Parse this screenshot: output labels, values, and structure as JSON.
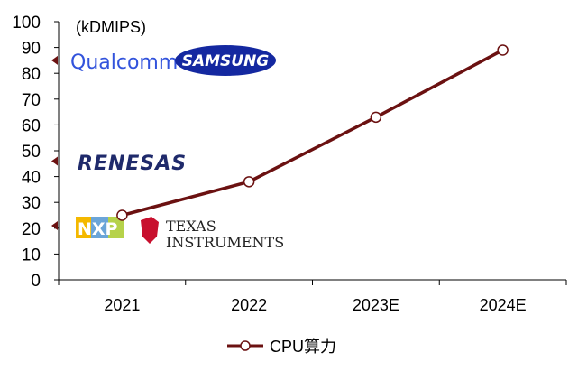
{
  "chart_data": {
    "type": "line",
    "unit_label": "(kDMIPS)",
    "categories": [
      "2021",
      "2022",
      "2023E",
      "2024E"
    ],
    "series": [
      {
        "name": "CPU算力",
        "values": [
          25,
          38,
          63,
          89
        ]
      }
    ],
    "ylim": [
      0,
      100
    ],
    "yticks": [
      0,
      10,
      20,
      30,
      40,
      50,
      60,
      70,
      80,
      90,
      100
    ],
    "grid": false,
    "legend_position": "bottom",
    "markers": [
      {
        "value": 85,
        "logos": [
          "Qualcomm",
          "SAMSUNG"
        ]
      },
      {
        "value": 46,
        "logos": [
          "RENESAS"
        ]
      },
      {
        "value": 21,
        "logos": [
          "NXP",
          "TEXAS INSTRUMENTS"
        ]
      }
    ],
    "colors": {
      "line": "#6b1111",
      "marker_fill": "#ffffff",
      "arrow": "#6b1111"
    }
  },
  "logos": {
    "qualcomm": "Qualcomm",
    "samsung": "SAMSUNG",
    "renesas": "RENESAS",
    "nxp": "NXP",
    "ti_line1": "TEXAS",
    "ti_line2": "INSTRUMENTS"
  }
}
